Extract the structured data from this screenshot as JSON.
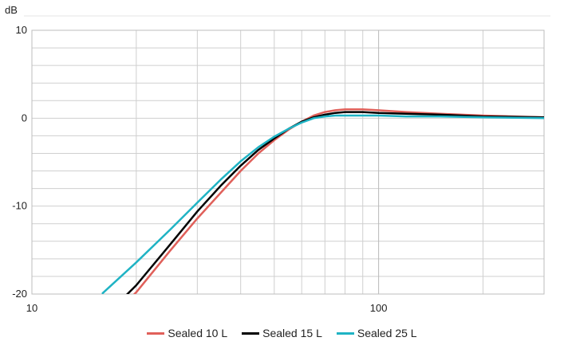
{
  "chart_data": {
    "type": "line",
    "ylabel": "dB",
    "x_scale": "log",
    "xlim": [
      10,
      300
    ],
    "ylim": [
      -20,
      10
    ],
    "x_ticks": [
      10,
      100
    ],
    "y_ticks": [
      10,
      0,
      -10,
      -20
    ],
    "grid": true,
    "legend_position": "bottom",
    "series": [
      {
        "name": "Sealed 10 L",
        "color": "#e0605a",
        "x": [
          16,
          20,
          25,
          30,
          35,
          40,
          45,
          50,
          55,
          60,
          65,
          70,
          75,
          80,
          90,
          100,
          120,
          150,
          200,
          300
        ],
        "y": [
          -23.5,
          -19.8,
          -15.1,
          -11.4,
          -8.5,
          -6.0,
          -4.0,
          -2.5,
          -1.3,
          -0.4,
          0.3,
          0.7,
          0.9,
          1.0,
          1.0,
          0.9,
          0.7,
          0.5,
          0.3,
          0.1
        ]
      },
      {
        "name": "Sealed 15 L",
        "color": "#000000",
        "x": [
          16,
          20,
          25,
          30,
          35,
          40,
          45,
          50,
          55,
          60,
          65,
          70,
          75,
          80,
          90,
          100,
          120,
          150,
          200,
          300
        ],
        "y": [
          -22.8,
          -19.0,
          -14.4,
          -10.6,
          -7.7,
          -5.4,
          -3.6,
          -2.3,
          -1.2,
          -0.4,
          0.1,
          0.4,
          0.6,
          0.7,
          0.7,
          0.6,
          0.5,
          0.4,
          0.2,
          0.1
        ]
      },
      {
        "name": "Sealed 25 L",
        "color": "#1fb3c4",
        "x": [
          16,
          20,
          25,
          30,
          35,
          40,
          45,
          50,
          55,
          60,
          65,
          70,
          75,
          80,
          90,
          100,
          120,
          150,
          200,
          300
        ],
        "y": [
          -19.9,
          -16.4,
          -12.7,
          -9.6,
          -7.0,
          -4.9,
          -3.3,
          -2.1,
          -1.2,
          -0.5,
          0.0,
          0.2,
          0.3,
          0.3,
          0.3,
          0.3,
          0.2,
          0.2,
          0.1,
          0.0
        ]
      }
    ]
  }
}
